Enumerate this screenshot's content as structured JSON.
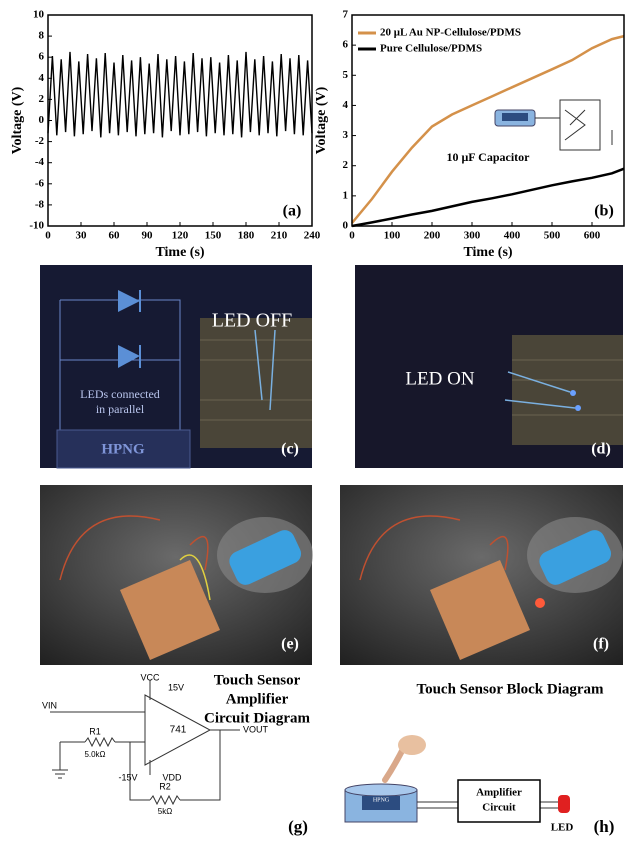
{
  "chart_data": [
    {
      "type": "line",
      "x_label": "Time (s)",
      "y_label": "Voltage (V)",
      "panel_label": "(a)",
      "xlim": [
        0,
        240
      ],
      "xticks": [
        0,
        30,
        60,
        90,
        120,
        150,
        180,
        210,
        240
      ],
      "ylim": [
        -10,
        10
      ],
      "yticks": [
        -10,
        -8,
        -6,
        -4,
        -2,
        0,
        2,
        4,
        6,
        8,
        10
      ],
      "x": [
        0,
        4,
        8,
        12,
        16,
        20,
        24,
        28,
        32,
        36,
        40,
        44,
        48,
        52,
        56,
        60,
        64,
        68,
        72,
        76,
        80,
        84,
        88,
        92,
        96,
        100,
        104,
        108,
        112,
        116,
        120,
        124,
        128,
        132,
        136,
        140,
        144,
        148,
        152,
        156,
        160,
        164,
        168,
        172,
        176,
        180,
        184,
        188,
        192,
        196,
        200,
        204,
        208,
        212,
        216,
        220,
        224,
        228,
        232,
        236,
        240
      ],
      "series": [
        {
          "color": "#000000",
          "values": [
            -1.2,
            6.1,
            -1.4,
            5.8,
            -1.1,
            6.5,
            -1.5,
            5.6,
            -1.3,
            6.3,
            -1.0,
            5.9,
            -1.6,
            6.4,
            -1.2,
            5.5,
            -1.4,
            6.2,
            -1.1,
            5.7,
            -1.5,
            6.0,
            -1.3,
            5.4,
            -1.2,
            6.3,
            -1.6,
            5.8,
            -1.0,
            6.1,
            -1.4,
            5.6,
            -1.3,
            6.4,
            -1.1,
            5.9,
            -1.5,
            6.0,
            -1.2,
            5.5,
            -1.4,
            6.2,
            -1.3,
            5.7,
            -1.6,
            6.5,
            -1.1,
            5.8,
            -1.4,
            6.1,
            -1.2,
            5.6,
            -1.5,
            6.3,
            -1.0,
            5.9,
            -1.3,
            6.2,
            -1.4,
            5.7,
            -1.2
          ]
        }
      ]
    },
    {
      "type": "line",
      "x_label": "Time (s)",
      "y_label": "Voltage (V)",
      "panel_label": "(b)",
      "annotation": "10 μF Capacitor",
      "xlim": [
        0,
        680
      ],
      "xticks": [
        0,
        100,
        200,
        300,
        400,
        500,
        600
      ],
      "ylim": [
        0,
        7
      ],
      "yticks": [
        0,
        1,
        2,
        3,
        4,
        5,
        6,
        7
      ],
      "x": [
        0,
        50,
        100,
        150,
        200,
        250,
        300,
        350,
        400,
        450,
        500,
        550,
        600,
        650,
        680
      ],
      "legend": "upper left",
      "series": [
        {
          "name": "20 μL Au NP-Cellulose/PDMS",
          "color": "#d4914a",
          "values": [
            0.1,
            0.9,
            1.8,
            2.6,
            3.3,
            3.7,
            4.0,
            4.3,
            4.6,
            4.9,
            5.2,
            5.5,
            5.9,
            6.2,
            6.3
          ]
        },
        {
          "name": "Pure Cellulose/PDMS",
          "color": "#000000",
          "values": [
            0,
            0.12,
            0.25,
            0.38,
            0.5,
            0.65,
            0.8,
            0.92,
            1.05,
            1.2,
            1.35,
            1.48,
            1.6,
            1.75,
            1.9
          ]
        }
      ]
    }
  ],
  "panels": {
    "c": {
      "led_off": "LED OFF",
      "caption": [
        "LEDs connected",
        "in parallel"
      ],
      "hpng": "HPNG",
      "label": "(c)"
    },
    "d": {
      "led_on": "LED ON",
      "label": "(d)"
    },
    "e": {
      "label": "(e)"
    },
    "f": {
      "label": "(f)"
    },
    "g": {
      "title": [
        "Touch Sensor",
        "Amplifier",
        "Circuit Diagram"
      ],
      "vcc": "VCC",
      "v_pos": "15V",
      "vin": "VIN",
      "r1": "R1",
      "r1_value": "5.0kΩ",
      "opamp": "741",
      "vout": "VOUT",
      "v_neg": "-15V",
      "vdd": "VDD",
      "r2": "R2",
      "r2_value": "5kΩ",
      "label": "(g)"
    },
    "h": {
      "title": "Touch Sensor Block Diagram",
      "hpng": "HPNG",
      "amplifier": [
        "Amplifier",
        "Circuit"
      ],
      "led": "LED",
      "label": "(h)"
    }
  }
}
